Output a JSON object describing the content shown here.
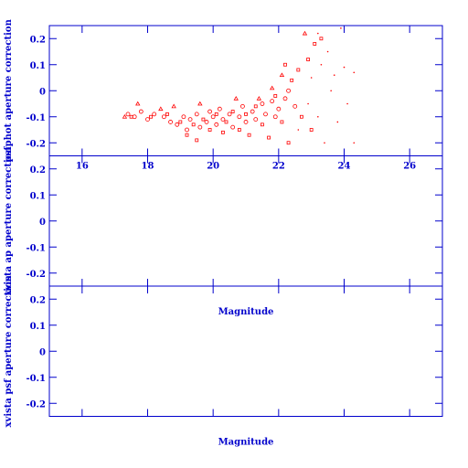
{
  "chart_data": [
    {
      "type": "scatter",
      "ylabel": "psfphot aperture correction",
      "xlim": [
        15,
        27
      ],
      "ylim": [
        -0.25,
        0.25
      ],
      "xticks": [
        16,
        18,
        20,
        22,
        24,
        26
      ],
      "yticks": [
        -0.2,
        -0.1,
        0,
        0.1,
        0.2
      ],
      "xtick_labels": true,
      "axis_color": "#0000cc",
      "series": [
        {
          "marker": "circle",
          "color": "#ff0000",
          "x": [
            17.4,
            17.6,
            17.8,
            18.0,
            18.2,
            18.5,
            18.7,
            18.9,
            19.1,
            19.2,
            19.3,
            19.5,
            19.6,
            19.8,
            19.9,
            20.0,
            20.1,
            20.2,
            20.3,
            20.5,
            20.6,
            20.8,
            20.9,
            21.0,
            21.2,
            21.3,
            21.5,
            21.6,
            21.8,
            21.9,
            22.0,
            22.2,
            22.3,
            22.5
          ],
          "y": [
            -0.09,
            -0.1,
            -0.08,
            -0.11,
            -0.09,
            -0.1,
            -0.12,
            -0.13,
            -0.1,
            -0.15,
            -0.11,
            -0.09,
            -0.14,
            -0.12,
            -0.08,
            -0.1,
            -0.13,
            -0.07,
            -0.11,
            -0.09,
            -0.14,
            -0.1,
            -0.06,
            -0.12,
            -0.08,
            -0.11,
            -0.05,
            -0.09,
            -0.04,
            -0.1,
            -0.07,
            -0.03,
            0.0,
            -0.06
          ]
        },
        {
          "marker": "square",
          "color": "#ff0000",
          "x": [
            17.5,
            18.1,
            18.6,
            19.0,
            19.2,
            19.4,
            19.5,
            19.7,
            19.9,
            20.1,
            20.3,
            20.4,
            20.6,
            20.8,
            21.0,
            21.1,
            21.3,
            21.5,
            21.7,
            21.9,
            22.1,
            22.3,
            22.4,
            22.6,
            22.7,
            22.9,
            23.0,
            23.1,
            23.3,
            22.2
          ],
          "y": [
            -0.1,
            -0.1,
            -0.09,
            -0.12,
            -0.17,
            -0.13,
            -0.19,
            -0.11,
            -0.15,
            -0.09,
            -0.16,
            -0.12,
            -0.08,
            -0.15,
            -0.09,
            -0.17,
            -0.06,
            -0.13,
            -0.18,
            -0.02,
            -0.12,
            -0.2,
            0.04,
            0.08,
            -0.1,
            0.12,
            -0.15,
            0.18,
            0.2,
            0.1
          ]
        },
        {
          "marker": "triangle",
          "color": "#ff0000",
          "x": [
            17.3,
            17.7,
            18.4,
            18.8,
            19.6,
            20.7,
            21.4,
            21.8,
            22.1,
            22.8
          ],
          "y": [
            -0.1,
            -0.05,
            -0.07,
            -0.06,
            -0.05,
            -0.03,
            -0.03,
            0.01,
            0.06,
            0.22
          ]
        },
        {
          "marker": "dot",
          "color": "#ff0000",
          "x": [
            22.6,
            22.9,
            23.0,
            23.2,
            23.3,
            23.4,
            23.5,
            23.6,
            23.7,
            23.8,
            24.0,
            24.1,
            24.3,
            24.3,
            23.9,
            23.2
          ],
          "y": [
            -0.15,
            -0.05,
            0.05,
            -0.1,
            0.1,
            -0.2,
            0.15,
            0.0,
            0.06,
            -0.12,
            0.09,
            -0.05,
            0.07,
            -0.2,
            0.24,
            0.22
          ]
        }
      ]
    },
    {
      "type": "scatter",
      "ylabel": "xvista ap aperture correction",
      "xlabel": "Magnitude",
      "xlim": [
        15,
        27
      ],
      "ylim": [
        -0.25,
        0.25
      ],
      "xticks": [
        16,
        18,
        20,
        22,
        24,
        26
      ],
      "yticks": [
        -0.2,
        -0.1,
        0,
        0.1,
        0.2
      ],
      "xtick_labels": false,
      "axis_color": "#0000cc",
      "series": []
    },
    {
      "type": "scatter",
      "ylabel": "xvista psf aperture correction",
      "xlabel": "Magnitude",
      "xlim": [
        15,
        27
      ],
      "ylim": [
        -0.25,
        0.25
      ],
      "xticks": [
        16,
        18,
        20,
        22,
        24,
        26
      ],
      "yticks": [
        -0.2,
        -0.1,
        0,
        0.1,
        0.2
      ],
      "xtick_labels": false,
      "axis_color": "#0000cc",
      "series": []
    }
  ]
}
